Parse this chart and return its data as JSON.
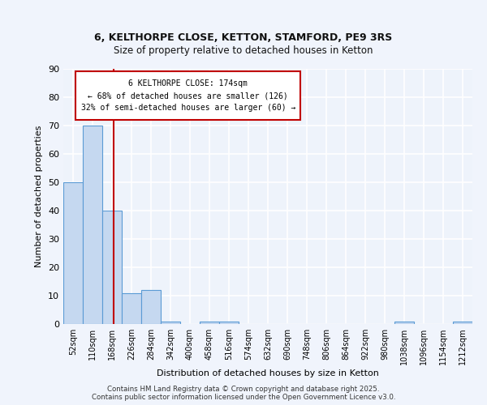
{
  "title1": "6, KELTHORPE CLOSE, KETTON, STAMFORD, PE9 3RS",
  "title2": "Size of property relative to detached houses in Ketton",
  "xlabel": "Distribution of detached houses by size in Ketton",
  "ylabel": "Number of detached properties",
  "bin_labels": [
    "52sqm",
    "110sqm",
    "168sqm",
    "226sqm",
    "284sqm",
    "342sqm",
    "400sqm",
    "458sqm",
    "516sqm",
    "574sqm",
    "632sqm",
    "690sqm",
    "748sqm",
    "806sqm",
    "864sqm",
    "922sqm",
    "980sqm",
    "1038sqm",
    "1096sqm",
    "1154sqm",
    "1212sqm"
  ],
  "bar_values": [
    50,
    70,
    40,
    11,
    12,
    1,
    0,
    1,
    1,
    0,
    0,
    0,
    0,
    0,
    0,
    0,
    0,
    1,
    0,
    0,
    1
  ],
  "bar_color": "#c5d8f0",
  "bar_edge_color": "#5b9bd5",
  "vline_x_idx": 2.1,
  "vline_color": "#c00000",
  "annotation_text": "6 KELTHORPE CLOSE: 174sqm\n← 68% of detached houses are smaller (126)\n32% of semi-detached houses are larger (60) →",
  "annotation_box_color": "#c00000",
  "ylim": [
    0,
    90
  ],
  "yticks": [
    0,
    10,
    20,
    30,
    40,
    50,
    60,
    70,
    80,
    90
  ],
  "footer_text": "Contains HM Land Registry data © Crown copyright and database right 2025.\nContains public sector information licensed under the Open Government Licence v3.0.",
  "bg_color": "#eef3fb",
  "grid_color": "#ffffff",
  "fig_bg_color": "#f0f4fc"
}
